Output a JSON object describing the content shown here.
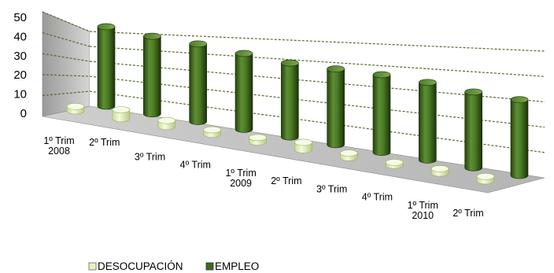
{
  "chart_data": {
    "type": "bar",
    "style": "3d-cylinder",
    "categories": [
      [
        "1º Trim",
        "2008"
      ],
      [
        "2º Trim"
      ],
      [
        "3º Trim"
      ],
      [
        "4º Trim"
      ],
      [
        "1º Trim",
        "2009"
      ],
      [
        "2º Trim"
      ],
      [
        "3º Trim"
      ],
      [
        "4º Trim"
      ],
      [
        "1º Trim",
        "2010"
      ],
      [
        "2º Trim"
      ]
    ],
    "series": [
      {
        "name": "DESOCUPACIÓN",
        "values": [
          3,
          6,
          4,
          3,
          3,
          5,
          3,
          2,
          3,
          3
        ],
        "color": "#e6f2c4"
      },
      {
        "name": "EMPLEO",
        "values": [
          43,
          42,
          42,
          41,
          40,
          41,
          42,
          42,
          41,
          41
        ],
        "color": "#3d6b1e"
      }
    ],
    "yticks": [
      0,
      10,
      20,
      30,
      40,
      50
    ],
    "ylim": [
      0,
      50
    ],
    "grid": true,
    "legend": "bottom"
  }
}
